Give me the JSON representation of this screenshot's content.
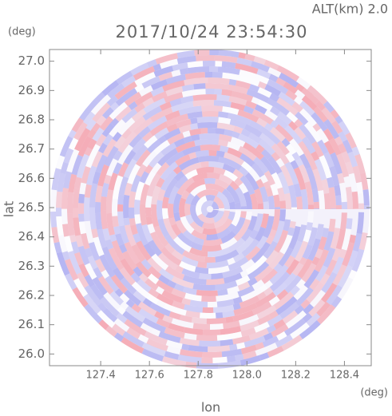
{
  "chart_data": {
    "type": "radar-ppi",
    "title": "2017/10/24 23:54:30",
    "altitude_label": "ALT(km)  2.0",
    "x_label": "lon",
    "x_unit": "(deg)",
    "y_label": "lat",
    "y_unit": "(deg)",
    "xlim": [
      127.19,
      128.51
    ],
    "xticks": [
      127.4,
      127.6,
      127.8,
      {
        "value": 128.0,
        "label": "128.0"
      },
      128.2,
      128.4
    ],
    "ylim": [
      25.96,
      27.04
    ],
    "yticks": [
      {
        "value": 26.0,
        "label": "26.0"
      },
      26.1,
      26.2,
      26.3,
      26.4,
      26.5,
      26.6,
      26.7,
      26.8,
      26.9,
      {
        "value": 27.0,
        "label": "27.0"
      }
    ]
  }
}
